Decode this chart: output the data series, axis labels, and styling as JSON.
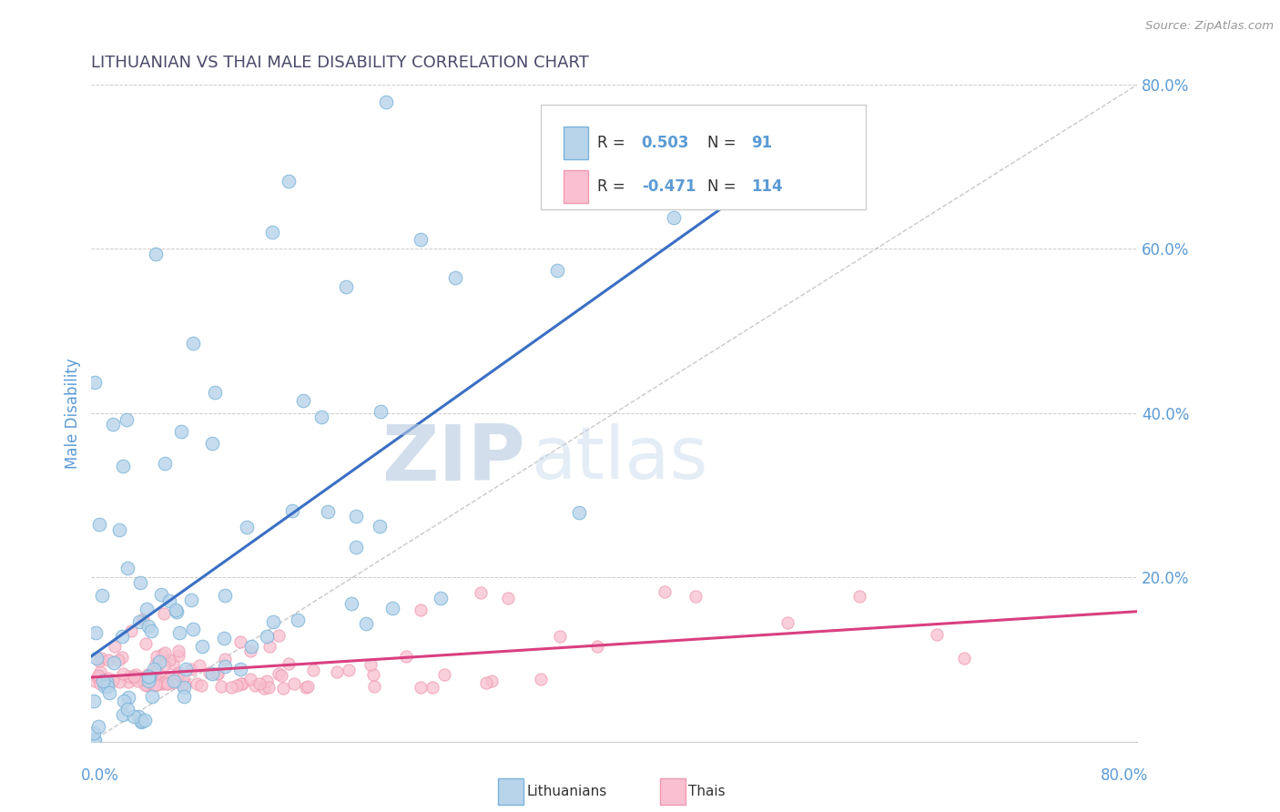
{
  "title": "LITHUANIAN VS THAI MALE DISABILITY CORRELATION CHART",
  "source": "Source: ZipAtlas.com",
  "ylabel": "Male Disability",
  "xlim": [
    0.0,
    0.8
  ],
  "ylim": [
    0.0,
    0.8
  ],
  "title_color": "#4a4a6a",
  "axis_label_color": "#5b9bd5",
  "watermark_zip": "ZIP",
  "watermark_atlas": "atlas",
  "blue_color": "#7ab4d8",
  "pink_color": "#f09ab0",
  "blue_fill": "#b8d4ea",
  "pink_fill": "#f8c0d0",
  "trend_blue": "#3a6fc4",
  "trend_pink": "#d94080",
  "dashed_line_color": "#bbbbbb",
  "background_color": "#ffffff",
  "grid_color": "#cccccc",
  "lith_seed": 12,
  "thai_seed": 7,
  "N_lith": 91,
  "N_thai": 114
}
